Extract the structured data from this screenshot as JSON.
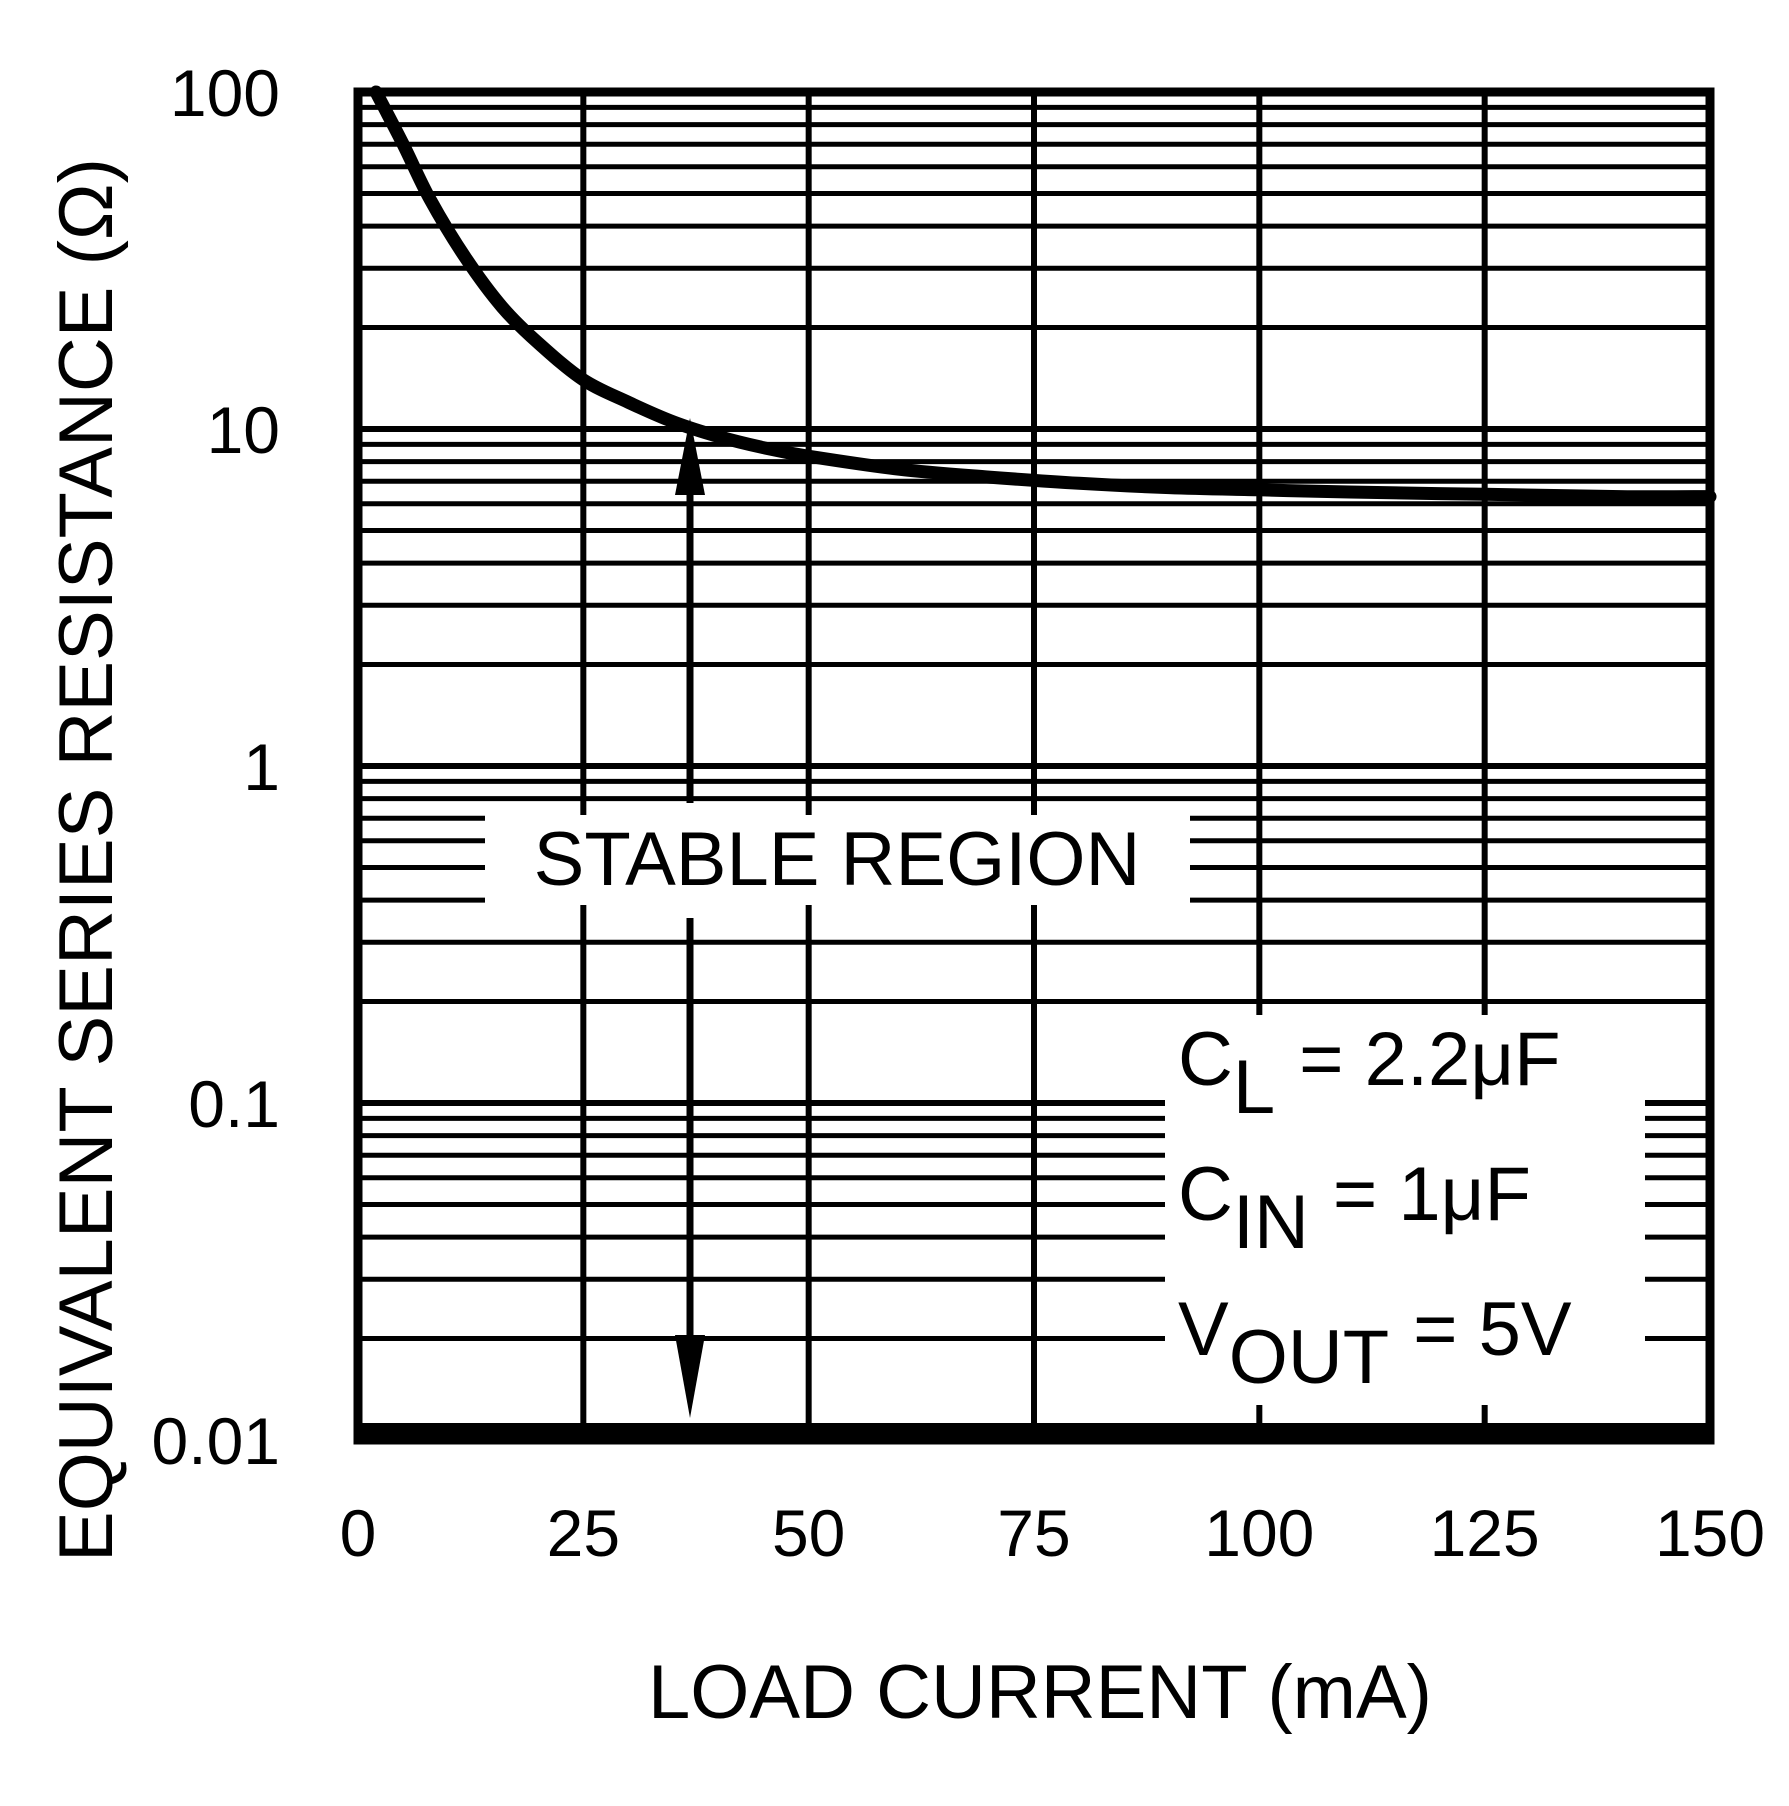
{
  "chart_data": {
    "type": "line",
    "title": "",
    "xlabel": "LOAD CURRENT (mA)",
    "ylabel": "EQUIVALENT SERIES RESISTANCE (Ω)",
    "xlim": [
      0,
      150
    ],
    "ylim": [
      0.01,
      100
    ],
    "yscale": "log",
    "grid": true,
    "x_ticks": [
      "0",
      "25",
      "50",
      "75",
      "100",
      "125",
      "150"
    ],
    "y_ticks": [
      "0.01",
      "0.1",
      "1",
      "10",
      "100"
    ],
    "series": [
      {
        "x": [
          2,
          5,
          8,
          12,
          16,
          20,
          25,
          30,
          35,
          40,
          45,
          50,
          60,
          70,
          80,
          90,
          100,
          110,
          125,
          140,
          150
        ],
        "values": [
          100,
          70,
          48,
          32,
          23,
          18,
          14,
          12,
          10.5,
          9.5,
          8.8,
          8.3,
          7.6,
          7.2,
          6.9,
          6.7,
          6.6,
          6.5,
          6.4,
          6.3,
          6.3
        ]
      }
    ],
    "lower_boundary": 0.01,
    "annotations": {
      "region_label": "STABLE REGION",
      "conditions": [
        {
          "main": "C",
          "sub": "L",
          "value": "= 2.2μF"
        },
        {
          "main": "C",
          "sub": "IN",
          "value": "= 1μF"
        },
        {
          "main": "V",
          "sub": "OUT",
          "value": "= 5V"
        }
      ]
    },
    "colors": {
      "line": "#000000",
      "grid": "#000000",
      "background": "#ffffff"
    }
  }
}
